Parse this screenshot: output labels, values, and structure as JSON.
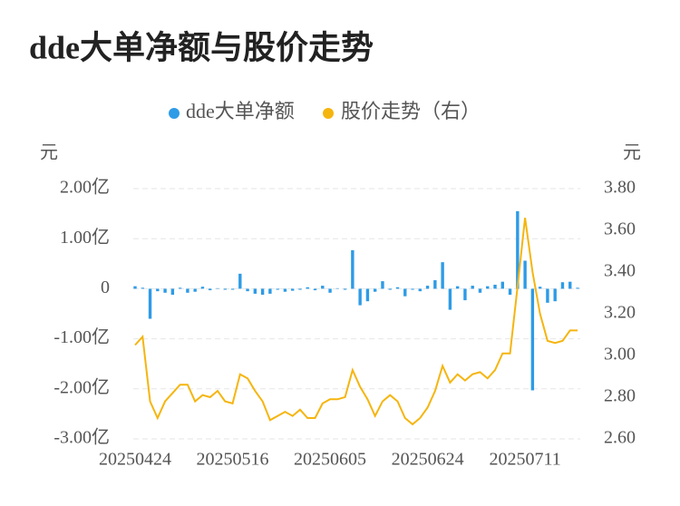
{
  "chart_data": {
    "type": "bar_line",
    "title": "dde大单净额与股价走势",
    "y_label": "元",
    "y2_label": "元",
    "categories": [
      "20250424",
      null,
      null,
      null,
      null,
      null,
      null,
      null,
      null,
      null,
      null,
      null,
      null,
      "20250516",
      null,
      null,
      null,
      null,
      null,
      null,
      null,
      null,
      null,
      null,
      null,
      null,
      "20250605",
      null,
      null,
      null,
      null,
      null,
      null,
      null,
      null,
      null,
      null,
      null,
      null,
      "20250624",
      null,
      null,
      null,
      null,
      null,
      null,
      null,
      null,
      null,
      null,
      null,
      null,
      "20250711",
      null,
      null,
      null,
      null,
      null,
      null,
      null
    ],
    "series": [
      {
        "name": "dde大单净额",
        "type": "bar",
        "color": "#2e9be6",
        "values": [
          0.05,
          0.02,
          -0.6,
          -0.05,
          -0.08,
          -0.12,
          0.02,
          -0.08,
          -0.06,
          0.04,
          -0.03,
          0.01,
          -0.02,
          -0.02,
          0.3,
          -0.05,
          -0.1,
          -0.12,
          -0.1,
          -0.02,
          -0.06,
          -0.04,
          -0.02,
          0.03,
          -0.03,
          0.06,
          -0.08,
          0.01,
          -0.02,
          0.77,
          -0.33,
          -0.25,
          -0.06,
          0.15,
          -0.02,
          0.03,
          -0.15,
          -0.02,
          -0.05,
          0.06,
          0.17,
          0.53,
          -0.42,
          0.05,
          -0.23,
          0.06,
          -0.08,
          0.05,
          0.08,
          0.14,
          -0.12,
          1.55,
          0.56,
          -2.03,
          0.04,
          -0.28,
          -0.25,
          0.13,
          0.14,
          0.02
        ]
      },
      {
        "name": "股价走势（右）",
        "type": "line",
        "axis": "y2",
        "color": "#f5b50f",
        "values": [
          3.05,
          3.09,
          2.78,
          2.7,
          2.78,
          2.82,
          2.86,
          2.86,
          2.78,
          2.81,
          2.8,
          2.83,
          2.78,
          2.77,
          2.91,
          2.89,
          2.83,
          2.78,
          2.69,
          2.71,
          2.73,
          2.71,
          2.74,
          2.7,
          2.7,
          2.77,
          2.79,
          2.79,
          2.8,
          2.93,
          2.85,
          2.79,
          2.71,
          2.78,
          2.81,
          2.78,
          2.7,
          2.67,
          2.7,
          2.75,
          2.83,
          2.95,
          2.87,
          2.91,
          2.88,
          2.91,
          2.92,
          2.89,
          2.93,
          3.01,
          3.01,
          3.33,
          3.66,
          3.4,
          3.2,
          3.07,
          3.06,
          3.07,
          3.12,
          3.12
        ]
      }
    ],
    "ylim": [
      -3,
      2
    ],
    "yticks": [
      {
        "value": 2,
        "label": "2.00亿"
      },
      {
        "value": 1,
        "label": "1.00亿"
      },
      0,
      {
        "value": -1,
        "label": "-1.00亿"
      },
      {
        "value": -2,
        "label": "-2.00亿"
      },
      {
        "value": -3,
        "label": "-3.00亿"
      }
    ],
    "y2lim": [
      2.6,
      3.8
    ],
    "y2ticks": [
      {
        "value": 3.8,
        "label": "3.80"
      },
      {
        "value": 3.6,
        "label": "3.60"
      },
      {
        "value": 3.4,
        "label": "3.40"
      },
      {
        "value": 3.2,
        "label": "3.20"
      },
      {
        "value": 3.0,
        "label": "3.00"
      },
      {
        "value": 2.8,
        "label": "2.80"
      },
      {
        "value": 2.6,
        "label": "2.60"
      }
    ],
    "grid": true
  }
}
